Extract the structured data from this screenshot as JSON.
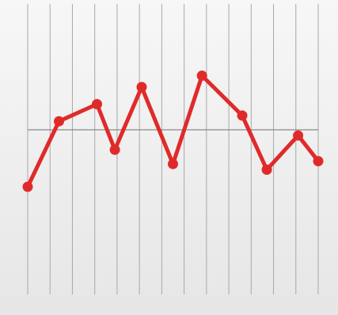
{
  "chart_data": {
    "type": "line",
    "x": [
      0,
      1.4,
      3.1,
      3.9,
      5.1,
      6.5,
      7.8,
      9.6,
      10.7,
      12.1,
      13
    ],
    "series": [
      {
        "color": "#e02a2a",
        "values": [
          40,
          63,
          69,
          53,
          75,
          48,
          79,
          65,
          46,
          58,
          49
        ]
      }
    ],
    "xlim": [
      0,
      13
    ],
    "xticks": [
      0,
      1,
      2,
      3,
      4,
      5,
      6,
      7,
      8,
      9,
      10,
      11,
      12,
      13
    ],
    "ylim": [
      0,
      100
    ],
    "yticks": [
      60
    ],
    "grid": true
  }
}
